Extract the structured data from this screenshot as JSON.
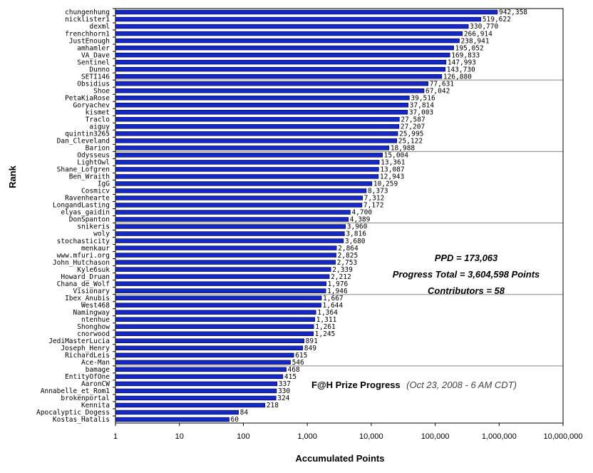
{
  "chart_data": {
    "type": "bar",
    "orientation": "horizontal",
    "x_scale": "log",
    "xlim": [
      1,
      10000000
    ],
    "grid": true,
    "ylabel": "Rank",
    "xlabel": "Accumulated Points",
    "x_ticks": [
      "1",
      "10",
      "100",
      "1,000",
      "10,000",
      "100,000",
      "1,000,000",
      "10,000,000"
    ],
    "bar_color": "#1428c8",
    "categories": [
      "chungenhung",
      "nicklister1",
      "dexml",
      "frenchhorn1",
      "JustEnough",
      "amhamler",
      "VA_Dave",
      "Sentinel",
      "Dunno",
      "SETI146",
      "Obsidius",
      "Shoe",
      "PetaKiaRose",
      "Goryachev",
      "kismet",
      "Traclo",
      "aiguy",
      "quintin3265",
      "Dan_Cleveland",
      "Barion",
      "Odysseus",
      "LightOwl",
      "Shane_Lofgren",
      "Ben_Wraith",
      "IgG",
      "Cosmicv",
      "Ravenhearte",
      "LongandLasting",
      "elyas_gaidin",
      "DonSpanton",
      "snikeris",
      "woly",
      "stochasticity",
      "menkaur",
      "www.mfuri.org",
      "John_Hutchason",
      "Kyle6suk",
      "Howard_Druan",
      "Chana_de_Wolf",
      "Visionary",
      "Ibex_Anubis",
      "West468",
      "Namingway",
      "ntenhue",
      "Shonghow",
      "cnorwood",
      "JediMasterLucia",
      "Joseph_Henry",
      "RichardLeis",
      "Ace-Man",
      "bamage",
      "EntityOfOne",
      "AaronCW",
      "Annabelle_et_Rom1",
      "brokenportal",
      "Kennita",
      "Apocalyptic_Dogess",
      "Kostas_Hatalis"
    ],
    "values": [
      942358,
      519622,
      330770,
      266914,
      238941,
      195052,
      169833,
      147993,
      143730,
      126880,
      77631,
      67042,
      39516,
      37814,
      37003,
      27587,
      27207,
      25995,
      25122,
      18988,
      15004,
      13361,
      13087,
      12943,
      10259,
      8373,
      7312,
      7172,
      4700,
      4389,
      3960,
      3816,
      3680,
      2864,
      2825,
      2753,
      2339,
      2212,
      1976,
      1946,
      1667,
      1644,
      1364,
      1311,
      1261,
      1245,
      891,
      849,
      615,
      546,
      468,
      415,
      337,
      330,
      324,
      218,
      84,
      60
    ],
    "value_labels": [
      "942,358",
      "519,622",
      "330,770",
      "266,914",
      "238,941",
      "195,052",
      "169,833",
      "147,993",
      "143,730",
      "126,880",
      "77,631",
      "67,042",
      "39,516",
      "37,814",
      "37,003",
      "27,587",
      "27,207",
      "25,995",
      "25,122",
      "18,988",
      "15,004",
      "13,361",
      "13,087",
      "12,943",
      "10,259",
      "8,373",
      "7,312",
      "7,172",
      "4,700",
      "4,389",
      "3,960",
      "3,816",
      "3,680",
      "2,864",
      "2,825",
      "2,753",
      "2,339",
      "2,212",
      "1,976",
      "1,946",
      "1,667",
      "1,644",
      "1,364",
      "1,311",
      "1,261",
      "1,245",
      "891",
      "849",
      "615",
      "546",
      "468",
      "415",
      "337",
      "330",
      "324",
      "218",
      "84",
      "60"
    ],
    "annotations": {
      "ppd": "PPD = 173,063",
      "progress_total": "Progress Total = 3,604,598 Points",
      "contributors": "Contributors = 58"
    },
    "subtitle": {
      "title": "F@H Prize Progress",
      "date": "(Oct 23, 2008 - 6 AM CDT)"
    }
  }
}
